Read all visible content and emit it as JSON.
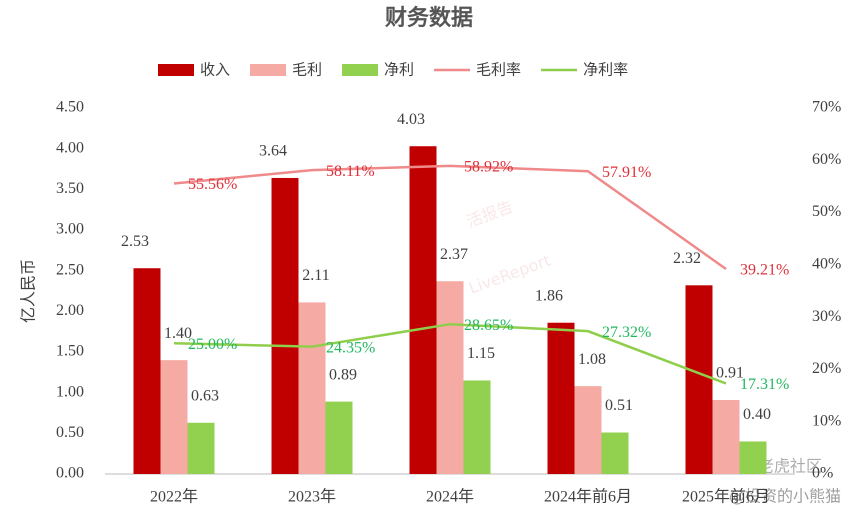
{
  "chart_data": {
    "type": "combo",
    "title": "财务数据",
    "y_label": "亿人民币",
    "categories": [
      "2022年",
      "2023年",
      "2024年",
      "2024年前6月",
      "2025年前6月"
    ],
    "series": [
      {
        "name": "收入",
        "type": "bar",
        "color": "#c00000",
        "values": [
          2.53,
          3.64,
          4.03,
          1.86,
          2.32
        ]
      },
      {
        "name": "毛利",
        "type": "bar",
        "color": "#f6aaa4",
        "values": [
          1.4,
          2.11,
          2.37,
          1.08,
          0.91
        ],
        "value_labels": [
          "1.40",
          "2.11",
          "2.37",
          "1.08",
          "0.91"
        ]
      },
      {
        "name": "净利",
        "type": "bar",
        "color": "#92d050",
        "values": [
          0.63,
          0.89,
          1.15,
          0.51,
          0.4
        ],
        "value_labels": [
          "0.63",
          "0.89",
          "1.15",
          "0.51",
          "0.40"
        ]
      },
      {
        "name": "毛利率",
        "type": "line",
        "axis": "y2",
        "color": "#f08a8a",
        "label_color": "#e0303a",
        "values": [
          55.56,
          58.11,
          58.92,
          57.91,
          39.21
        ],
        "value_labels": [
          "55.56%",
          "58.11%",
          "58.92%",
          "57.91%",
          "39.21%"
        ]
      },
      {
        "name": "净利率",
        "type": "line",
        "axis": "y2",
        "color": "#8fce4a",
        "label_color": "#22b860",
        "values": [
          25.0,
          24.35,
          28.65,
          27.32,
          17.31
        ],
        "value_labels": [
          "25.00%",
          "24.35%",
          "28.65%",
          "27.32%",
          "17.31%"
        ]
      }
    ],
    "ylim": [
      0,
      4.5
    ],
    "yticks": [
      {
        "value": 0,
        "label": "0.00"
      },
      {
        "value": 0.5,
        "label": "0.50"
      },
      {
        "value": 1,
        "label": "1.00"
      },
      {
        "value": 1.5,
        "label": "1.50"
      },
      {
        "value": 2,
        "label": "2.00"
      },
      {
        "value": 2.5,
        "label": "2.50"
      },
      {
        "value": 3,
        "label": "3.00"
      },
      {
        "value": 3.5,
        "label": "3.50"
      },
      {
        "value": 4,
        "label": "4.00"
      },
      {
        "value": 4.5,
        "label": "4.50"
      }
    ],
    "y2lim": [
      0,
      70
    ],
    "y2ticks": [
      {
        "value": 0,
        "label": "0%"
      },
      {
        "value": 10,
        "label": "10%"
      },
      {
        "value": 20,
        "label": "20%"
      },
      {
        "value": 30,
        "label": "30%"
      },
      {
        "value": 40,
        "label": "40%"
      },
      {
        "value": 50,
        "label": "50%"
      },
      {
        "value": 60,
        "label": "60%"
      },
      {
        "value": 70,
        "label": "70%"
      }
    ],
    "grid": false,
    "legend": "top",
    "watermarks": [
      "活报告",
      "LiveReport",
      "老虎社区",
      "@投资的小熊猫"
    ]
  }
}
